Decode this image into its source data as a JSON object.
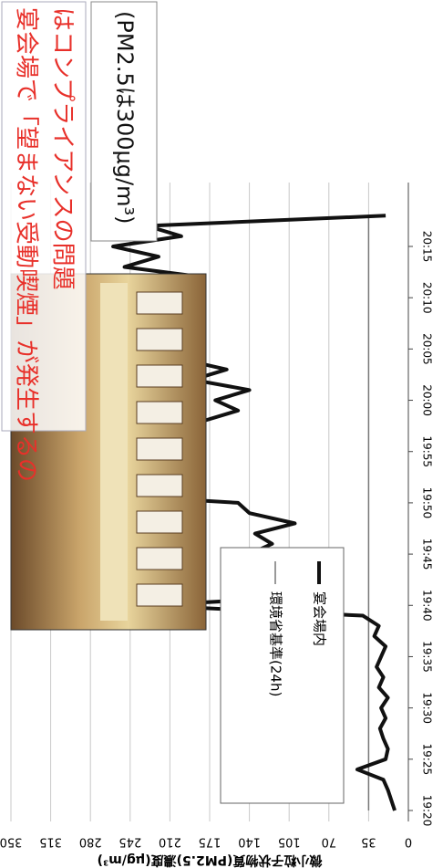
{
  "chart_data": {
    "type": "line",
    "headline": [
      "宴会場で「望まない受動喫煙」が発生するの",
      "はコンプライアンスの問題"
    ],
    "callout": "(PM2.5は300μg/m³)",
    "ylabel": "微小粒子状物質(PM2.5)濃度(μg/m³)",
    "x": [
      "19:20",
      "19:21",
      "19:22",
      "19:23",
      "19:24",
      "19:25",
      "19:26",
      "19:27",
      "19:28",
      "19:29",
      "19:30",
      "19:31",
      "19:32",
      "19:33",
      "19:34",
      "19:35",
      "19:36",
      "19:37",
      "19:38",
      "19:39",
      "19:40",
      "19:41",
      "19:42",
      "19:43",
      "19:44",
      "19:45",
      "19:46",
      "19:47",
      "19:48",
      "19:49",
      "19:50",
      "19:51",
      "19:52",
      "19:53",
      "19:54",
      "19:55",
      "19:56",
      "19:57",
      "19:58",
      "19:59",
      "20:00",
      "20:01",
      "20:02",
      "20:03",
      "20:04",
      "20:05",
      "20:06",
      "20:07",
      "20:08",
      "20:09",
      "20:10",
      "20:11",
      "20:12",
      "20:13",
      "20:14",
      "20:15",
      "20:16",
      "20:17",
      "20:18"
    ],
    "series": [
      {
        "name": "宴会場内",
        "color": "#111111",
        "width": 4,
        "values": [
          12,
          15,
          18,
          22,
          45,
          20,
          18,
          22,
          25,
          20,
          24,
          18,
          26,
          22,
          28,
          24,
          20,
          30,
          26,
          40,
          230,
          60,
          110,
          130,
          150,
          140,
          120,
          135,
          100,
          140,
          150,
          300,
          200,
          270,
          250,
          290,
          230,
          270,
          180,
          150,
          170,
          140,
          190,
          160,
          200,
          290,
          210,
          300,
          230,
          250,
          200,
          230,
          180,
          250,
          220,
          260,
          200,
          230,
          20
        ]
      },
      {
        "name": "環境省基準(24h)",
        "color": "#777777",
        "width": 1.5,
        "values": [
          35,
          35,
          35,
          35,
          35,
          35,
          35,
          35,
          35,
          35,
          35,
          35,
          35,
          35,
          35,
          35,
          35,
          35,
          35,
          35,
          35,
          35,
          35,
          35,
          35,
          35,
          35,
          35,
          35,
          35,
          35,
          35,
          35,
          35,
          35,
          35,
          35,
          35,
          35,
          35,
          35,
          35,
          35,
          35,
          35,
          35,
          35,
          35,
          35,
          35,
          35,
          35,
          35,
          35,
          35,
          35,
          35,
          35,
          35
        ]
      }
    ],
    "xticks": [
      "19:20",
      "19:25",
      "19:30",
      "19:35",
      "19:40",
      "19:45",
      "19:50",
      "19:55",
      "20:00",
      "20:05",
      "20:10",
      "20:15"
    ],
    "ylim": [
      0,
      350
    ],
    "yticks": [
      0,
      35,
      70,
      105,
      140,
      175,
      210,
      245,
      280,
      315,
      350
    ],
    "grid": true
  }
}
